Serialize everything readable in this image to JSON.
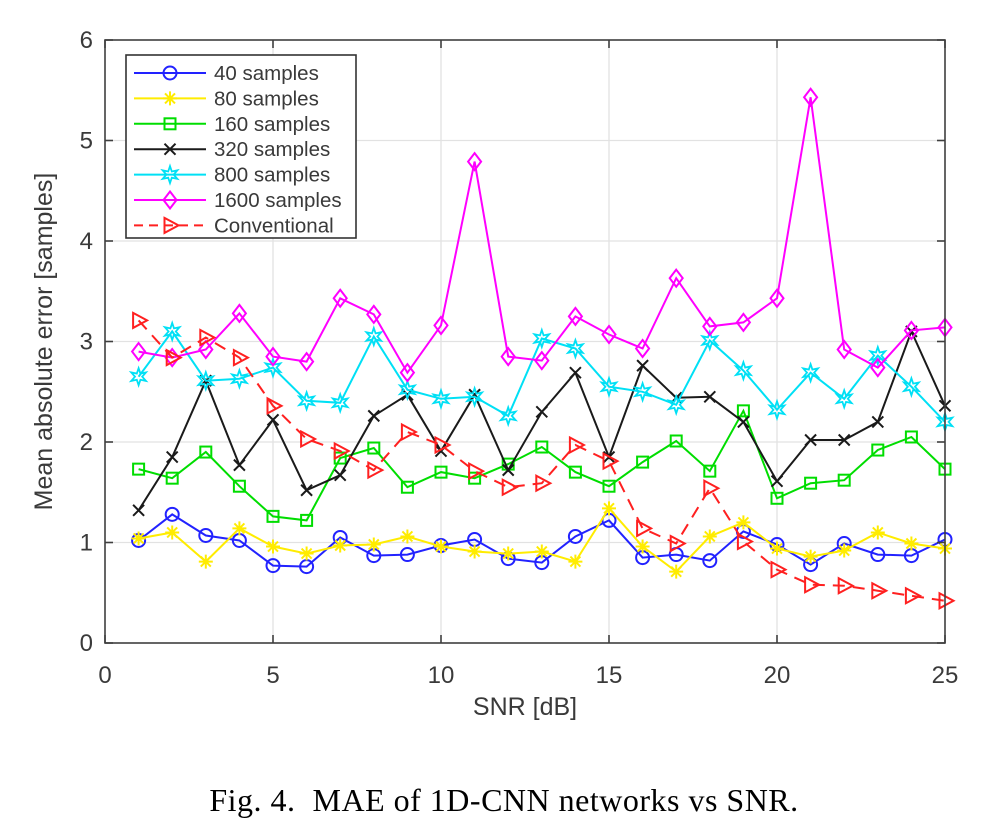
{
  "figure": {
    "caption": "Fig. 4.  MAE of 1D-CNN networks vs SNR."
  },
  "chart_data": {
    "type": "line",
    "title": "",
    "xlabel": "SNR [dB]",
    "ylabel": "Mean absolute error [samples]",
    "xlim": [
      0,
      25
    ],
    "ylim": [
      0,
      6
    ],
    "xticks": [
      0,
      5,
      10,
      15,
      20,
      25
    ],
    "yticks": [
      0,
      1,
      2,
      3,
      4,
      5,
      6
    ],
    "grid": true,
    "legend_position": "top-left",
    "x": [
      1,
      2,
      3,
      4,
      5,
      6,
      7,
      8,
      9,
      10,
      11,
      12,
      13,
      14,
      15,
      16,
      17,
      18,
      19,
      20,
      21,
      22,
      23,
      24,
      25
    ],
    "series": [
      {
        "name": "40 samples",
        "color": "#2222ff",
        "marker": "circle",
        "line": "solid",
        "values": [
          1.02,
          1.28,
          1.07,
          1.02,
          0.77,
          0.76,
          1.05,
          0.87,
          0.88,
          0.97,
          1.03,
          0.84,
          0.8,
          1.06,
          1.22,
          0.85,
          0.88,
          0.82,
          1.11,
          0.98,
          0.78,
          0.99,
          0.88,
          0.87,
          1.03
        ]
      },
      {
        "name": "80 samples",
        "color": "#ffec00",
        "marker": "asterisk",
        "line": "solid",
        "values": [
          1.04,
          1.1,
          0.81,
          1.14,
          0.96,
          0.89,
          0.97,
          0.98,
          1.06,
          0.96,
          0.91,
          0.89,
          0.91,
          0.81,
          1.34,
          0.96,
          0.71,
          1.06,
          1.2,
          0.94,
          0.86,
          0.92,
          1.1,
          0.99,
          0.94
        ]
      },
      {
        "name": "160 samples",
        "color": "#00dd00",
        "marker": "square",
        "line": "solid",
        "values": [
          1.73,
          1.64,
          1.9,
          1.56,
          1.26,
          1.22,
          1.84,
          1.94,
          1.55,
          1.7,
          1.64,
          1.78,
          1.95,
          1.7,
          1.56,
          1.8,
          2.01,
          1.71,
          2.31,
          1.44,
          1.59,
          1.62,
          1.92,
          2.05,
          1.73
        ]
      },
      {
        "name": "320 samples",
        "color": "#1a1a1a",
        "marker": "x",
        "line": "solid",
        "values": [
          1.32,
          1.85,
          2.61,
          1.77,
          2.22,
          1.52,
          1.67,
          2.26,
          2.47,
          1.91,
          2.47,
          1.72,
          2.3,
          2.69,
          1.85,
          2.76,
          2.44,
          2.45,
          2.2,
          1.61,
          2.02,
          2.02,
          2.2,
          3.1,
          2.36
        ]
      },
      {
        "name": "800 samples",
        "color": "#00e0f5",
        "marker": "hexagram",
        "line": "solid",
        "values": [
          2.65,
          3.1,
          2.61,
          2.63,
          2.74,
          2.41,
          2.39,
          3.05,
          2.52,
          2.43,
          2.45,
          2.26,
          3.03,
          2.93,
          2.55,
          2.5,
          2.37,
          3.01,
          2.71,
          2.32,
          2.69,
          2.43,
          2.86,
          2.55,
          2.2
        ]
      },
      {
        "name": "1600 samples",
        "color": "#ff00ff",
        "marker": "diamond",
        "line": "solid",
        "values": [
          2.9,
          2.84,
          2.92,
          3.28,
          2.85,
          2.8,
          3.43,
          3.27,
          2.69,
          3.16,
          4.79,
          2.85,
          2.81,
          3.25,
          3.07,
          2.93,
          3.63,
          3.15,
          3.19,
          3.43,
          5.43,
          2.92,
          2.74,
          3.11,
          3.14
        ]
      },
      {
        "name": "Conventional",
        "color": "#ff2020",
        "marker": "triangle-right",
        "line": "dashed",
        "values": [
          3.21,
          2.84,
          3.04,
          2.84,
          2.36,
          2.03,
          1.91,
          1.72,
          2.1,
          1.97,
          1.71,
          1.55,
          1.59,
          1.97,
          1.81,
          1.14,
          0.99,
          1.54,
          1.01,
          0.73,
          0.58,
          0.57,
          0.52,
          0.47,
          0.42
        ]
      }
    ],
    "style": {
      "grid_color": "#e2e2e2",
      "axis_color": "#3f3f3f",
      "text_color": "#3a3a3a",
      "legend_border_color": "#333333",
      "background": "#ffffff"
    }
  }
}
